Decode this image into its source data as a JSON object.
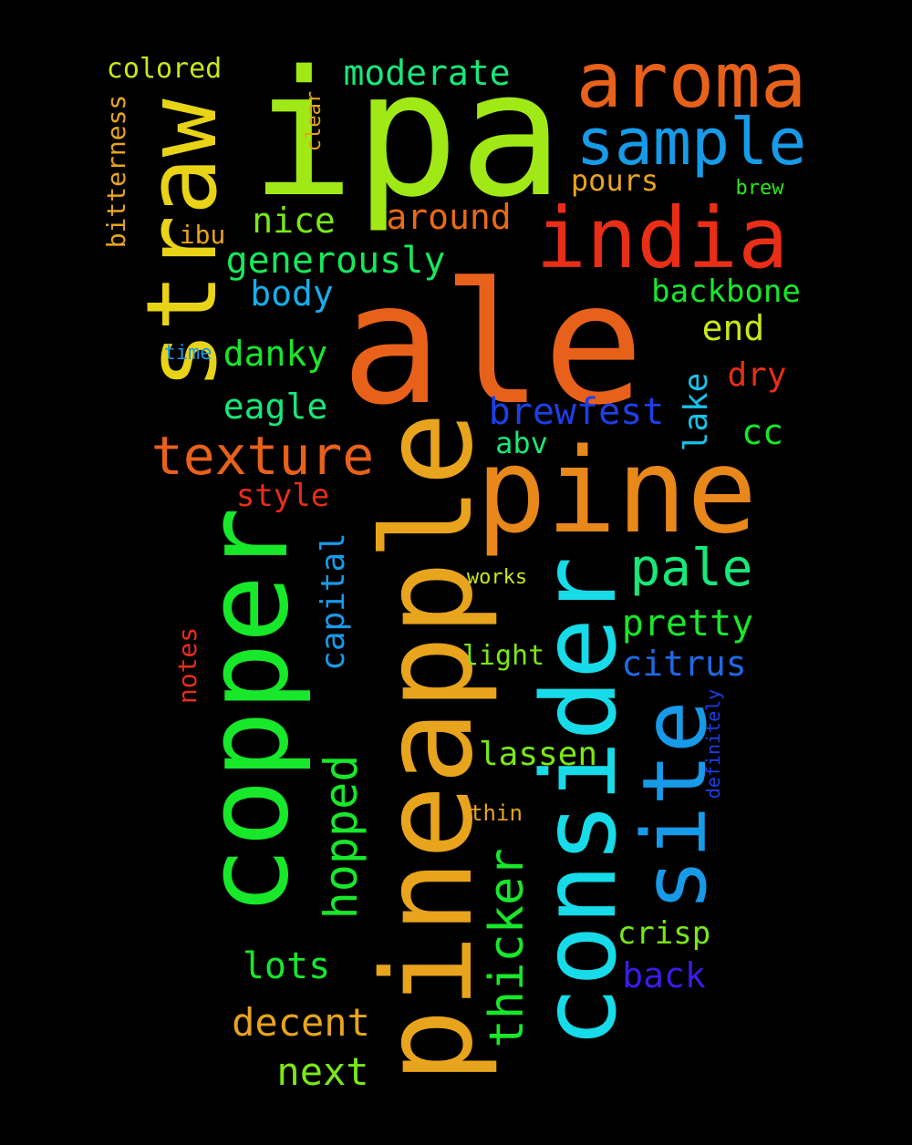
{
  "words": [
    {
      "text": "ale",
      "color": "#e8611a"
    },
    {
      "text": "ipa",
      "color": "#a1e817"
    },
    {
      "text": "pineapple",
      "color": "#e8a41c"
    },
    {
      "text": "consider",
      "color": "#17dbe8"
    },
    {
      "text": "copper",
      "color": "#17e82a"
    },
    {
      "text": "straw",
      "color": "#e8d317"
    },
    {
      "text": "pine",
      "color": "#e8871a"
    },
    {
      "text": "india",
      "color": "#e82e17"
    },
    {
      "text": "site",
      "color": "#179ae8"
    },
    {
      "text": "aroma",
      "color": "#e8611a"
    },
    {
      "text": "sample",
      "color": "#179be8"
    },
    {
      "text": "texture",
      "color": "#e8611a"
    },
    {
      "text": "pale",
      "color": "#17e87a"
    },
    {
      "text": "thicker",
      "color": "#17e82a"
    },
    {
      "text": "hopped",
      "color": "#17e82a"
    },
    {
      "text": "moderate",
      "color": "#17e87a"
    },
    {
      "text": "generously",
      "color": "#17e85a"
    },
    {
      "text": "around",
      "color": "#e86a17"
    },
    {
      "text": "nice",
      "color": "#7ae817"
    },
    {
      "text": "pours",
      "color": "#e8a41c"
    },
    {
      "text": "brew",
      "color": "#2ae817"
    },
    {
      "text": "backbone",
      "color": "#17e82a"
    },
    {
      "text": "end",
      "color": "#c6e817"
    },
    {
      "text": "body",
      "color": "#17aee8"
    },
    {
      "text": "danky",
      "color": "#17e82a"
    },
    {
      "text": "dry",
      "color": "#e82e17"
    },
    {
      "text": "eagle",
      "color": "#17e87a"
    },
    {
      "text": "brewfest",
      "color": "#1c3fe8"
    },
    {
      "text": "lake",
      "color": "#17c3e8"
    },
    {
      "text": "cc",
      "color": "#17e82a"
    },
    {
      "text": "abv",
      "color": "#17e87a"
    },
    {
      "text": "style",
      "color": "#e82e17"
    },
    {
      "text": "capital",
      "color": "#179ae8"
    },
    {
      "text": "works",
      "color": "#c6e817"
    },
    {
      "text": "pretty",
      "color": "#17e82a"
    },
    {
      "text": "citrus",
      "color": "#1c6ae8"
    },
    {
      "text": "light",
      "color": "#7ae817"
    },
    {
      "text": "lassen",
      "color": "#7ae817"
    },
    {
      "text": "definitely",
      "color": "#1c3fe8"
    },
    {
      "text": "thin",
      "color": "#e8a41c"
    },
    {
      "text": "crisp",
      "color": "#7ae817"
    },
    {
      "text": "back",
      "color": "#3a1ce8"
    },
    {
      "text": "lots",
      "color": "#17e82a"
    },
    {
      "text": "decent",
      "color": "#e8a41c"
    },
    {
      "text": "next",
      "color": "#7ae817"
    },
    {
      "text": "notes",
      "color": "#e82e17"
    },
    {
      "text": "colored",
      "color": "#c6e817"
    },
    {
      "text": "bitterness",
      "color": "#e8a41c"
    },
    {
      "text": "clear",
      "color": "#e8a41c"
    },
    {
      "text": "ibu",
      "color": "#e8a41c"
    },
    {
      "text": "time",
      "color": "#179ae8"
    }
  ]
}
